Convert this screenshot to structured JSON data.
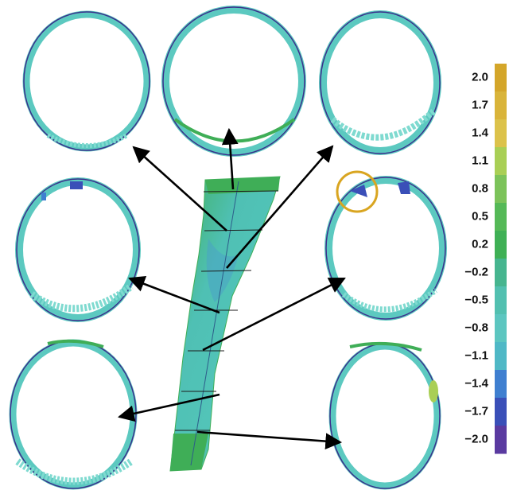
{
  "colorbar": {
    "ticks": [
      {
        "label": "2.0",
        "color": "#d4a62a"
      },
      {
        "label": "1.7",
        "color": "#d9b43a"
      },
      {
        "label": "1.4",
        "color": "#dcc24a"
      },
      {
        "label": "1.1",
        "color": "#a9cf55"
      },
      {
        "label": "0.8",
        "color": "#7cc35a"
      },
      {
        "label": "0.5",
        "color": "#55b957"
      },
      {
        "label": "0.2",
        "color": "#3fb055"
      },
      {
        "label": "−0.2",
        "color": "#46b58f"
      },
      {
        "label": "−0.5",
        "color": "#52c0b0"
      },
      {
        "label": "−0.8",
        "color": "#5cc6c0"
      },
      {
        "label": "−1.1",
        "color": "#4fb8c6"
      },
      {
        "label": "−1.4",
        "color": "#3f7fd0"
      },
      {
        "label": "−1.7",
        "color": "#3a4fb8"
      },
      {
        "label": "−2.0",
        "color": "#5a3aa0"
      }
    ]
  },
  "colors": {
    "section_fill": "#5cc9c0",
    "section_outline": "#3b2f8c",
    "bone_green": "#3fae57",
    "bone_teal": "#4fc0b4",
    "highlight_circle": "#d9a520",
    "arrow": "#000000"
  }
}
